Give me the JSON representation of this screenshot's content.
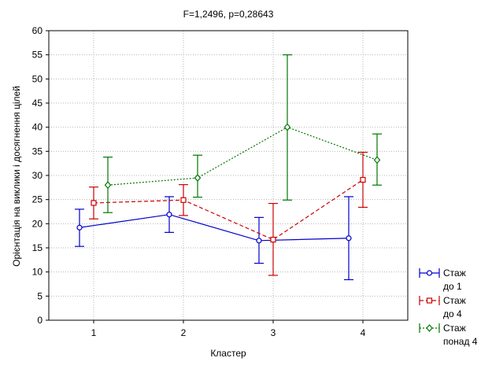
{
  "chart_data": {
    "type": "line",
    "title": "F=1,2496, p=0,28643",
    "xlabel": "Кластер",
    "ylabel": "Орієнтація на виклики і досягнення цілей",
    "categories": [
      "1",
      "2",
      "3",
      "4"
    ],
    "ylim": [
      0,
      60
    ],
    "yticks": [
      "0",
      "5",
      "10",
      "15",
      "20",
      "25",
      "30",
      "35",
      "40",
      "45",
      "50",
      "55",
      "60"
    ],
    "grid": true,
    "legend_position": "right",
    "series": [
      {
        "name_lines": [
          "Стаж",
          "до 1"
        ],
        "color": "#0000cc",
        "line_style": "solid",
        "marker": "circle",
        "values": [
          19.2,
          21.9,
          16.5,
          17.0
        ],
        "lower": [
          15.3,
          18.2,
          11.8,
          8.4
        ],
        "upper": [
          23.0,
          25.6,
          21.3,
          25.6
        ]
      },
      {
        "name_lines": [
          "Стаж",
          "до 4"
        ],
        "color": "#cc0000",
        "line_style": "dashed",
        "marker": "square",
        "values": [
          24.3,
          24.9,
          16.7,
          29.1
        ],
        "lower": [
          21.0,
          21.7,
          9.3,
          23.4
        ],
        "upper": [
          27.6,
          28.1,
          24.2,
          34.8
        ]
      },
      {
        "name_lines": [
          "Стаж",
          "понад 4"
        ],
        "color": "#007700",
        "line_style": "dotted",
        "marker": "diamond",
        "values": [
          28.0,
          29.5,
          40.0,
          33.2
        ],
        "lower": [
          22.3,
          25.5,
          24.9,
          28.0
        ],
        "upper": [
          33.8,
          34.2,
          55.0,
          38.6
        ]
      }
    ]
  }
}
